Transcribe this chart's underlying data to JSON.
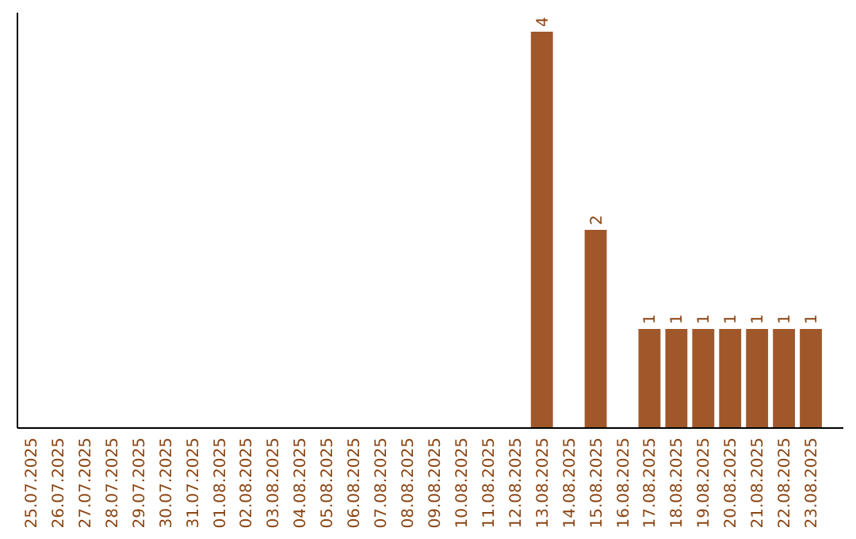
{
  "chart_data": {
    "type": "bar",
    "categories": [
      "25.07.2025",
      "26.07.2025",
      "27.07.2025",
      "28.07.2025",
      "29.07.2025",
      "30.07.2025",
      "31.07.2025",
      "01.08.2025",
      "02.08.2025",
      "03.08.2025",
      "04.08.2025",
      "05.08.2025",
      "06.08.2025",
      "07.08.2025",
      "08.08.2025",
      "09.08.2025",
      "10.08.2025",
      "11.08.2025",
      "12.08.2025",
      "13.08.2025",
      "14.08.2025",
      "15.08.2025",
      "16.08.2025",
      "17.08.2025",
      "18.08.2025",
      "19.08.2025",
      "20.08.2025",
      "21.08.2025",
      "22.08.2025",
      "23.08.2025"
    ],
    "values": [
      null,
      null,
      null,
      null,
      null,
      null,
      null,
      null,
      null,
      null,
      null,
      null,
      null,
      null,
      null,
      null,
      null,
      null,
      null,
      4,
      null,
      2,
      null,
      1,
      1,
      1,
      1,
      1,
      1,
      1
    ],
    "data_labels": true,
    "color": "#a0582a",
    "ylim": [
      0,
      4
    ],
    "tick_labels": "x"
  }
}
